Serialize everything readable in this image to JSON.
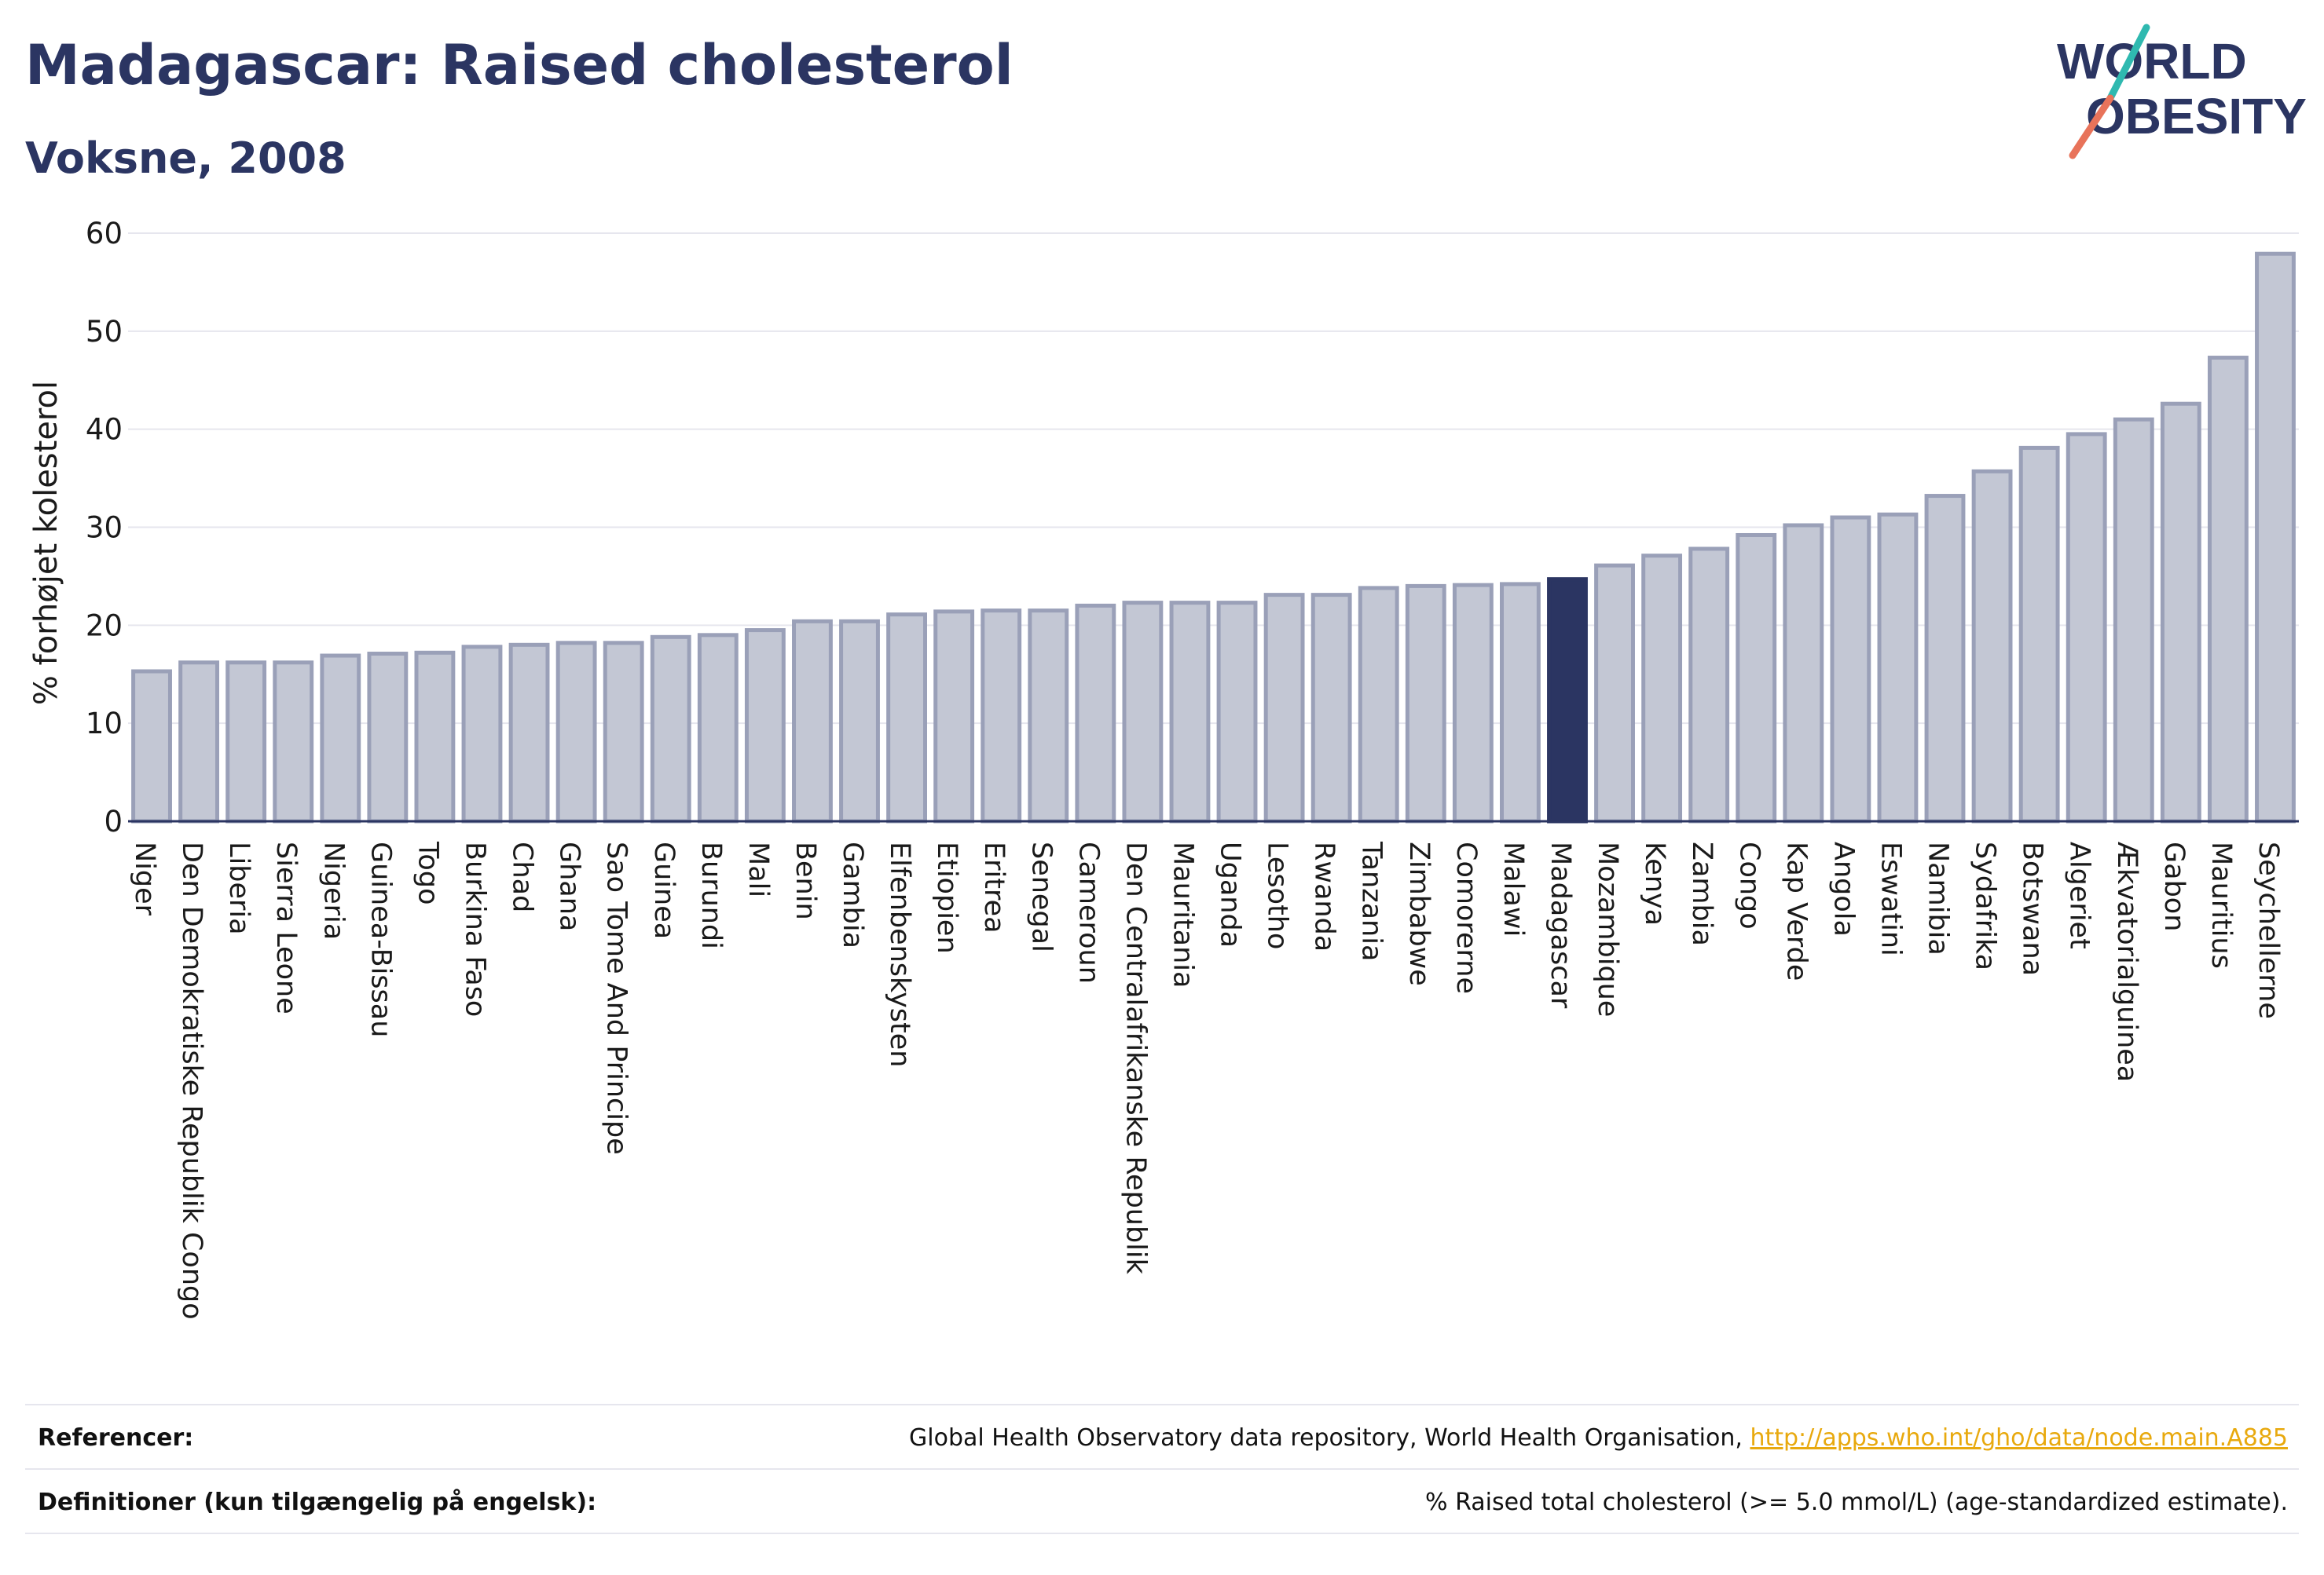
{
  "header": {
    "title": "Madagascar: Raised cholesterol",
    "subtitle": "Voksne, 2008"
  },
  "logo": {
    "line1": "WORLD",
    "line2": "OBESITY"
  },
  "colors": {
    "bar": "#c3c7d4",
    "bar_edge": "#9aa0b8",
    "highlight": "#2b3562",
    "title": "#2b3562",
    "grid": "#e6e6ee",
    "logo_teal": "#2fb9b0",
    "logo_coral": "#e8735a",
    "link": "#e8a90e"
  },
  "chart_data": {
    "type": "bar",
    "ylabel": "% forhøjet kolesterol",
    "ylim": [
      0,
      60
    ],
    "yticks": [
      0,
      10,
      20,
      30,
      40,
      50,
      60
    ],
    "grid": true,
    "highlight": "Madagascar",
    "categories": [
      "Niger",
      "Den Demokratiske Republik Congo",
      "Liberia",
      "Sierra Leone",
      "Nigeria",
      "Guinea-Bissau",
      "Togo",
      "Burkina Faso",
      "Chad",
      "Ghana",
      "Sao Tome And Principe",
      "Guinea",
      "Burundi",
      "Mali",
      "Benin",
      "Gambia",
      "Elfenbenskysten",
      "Etiopien",
      "Eritrea",
      "Senegal",
      "Cameroun",
      "Den Centralafrikanske Republik",
      "Mauritania",
      "Uganda",
      "Lesotho",
      "Rwanda",
      "Tanzania",
      "Zimbabwe",
      "Comorerne",
      "Malawi",
      "Madagascar",
      "Mozambique",
      "Kenya",
      "Zambia",
      "Congo",
      "Kap Verde",
      "Angola",
      "Eswatini",
      "Namibia",
      "Sydafrika",
      "Botswana",
      "Algeriet",
      "Ækvatorialguinea",
      "Gabon",
      "Mauritius",
      "Seychellerne"
    ],
    "values": [
      15.3,
      16.2,
      16.2,
      16.2,
      16.9,
      17.1,
      17.2,
      17.8,
      18.0,
      18.2,
      18.2,
      18.8,
      19.0,
      19.5,
      20.4,
      20.4,
      21.1,
      21.4,
      21.5,
      21.5,
      22.0,
      22.3,
      22.3,
      22.3,
      23.1,
      23.1,
      23.8,
      24.0,
      24.1,
      24.2,
      24.7,
      26.1,
      27.1,
      27.8,
      29.2,
      30.2,
      31.0,
      31.3,
      33.2,
      35.7,
      38.1,
      39.5,
      41.0,
      42.6,
      47.3,
      57.9
    ]
  },
  "footer": {
    "references_label": "Referencer:",
    "references_text": "Global Health Observatory data repository, World Health Organisation, ",
    "references_link": "http://apps.who.int/gho/data/node.main.A885",
    "definitions_label": "Definitioner (kun tilgængelig på engelsk):",
    "definitions_text": "% Raised total cholesterol (>= 5.0 mmol/L) (age-standardized estimate)."
  }
}
